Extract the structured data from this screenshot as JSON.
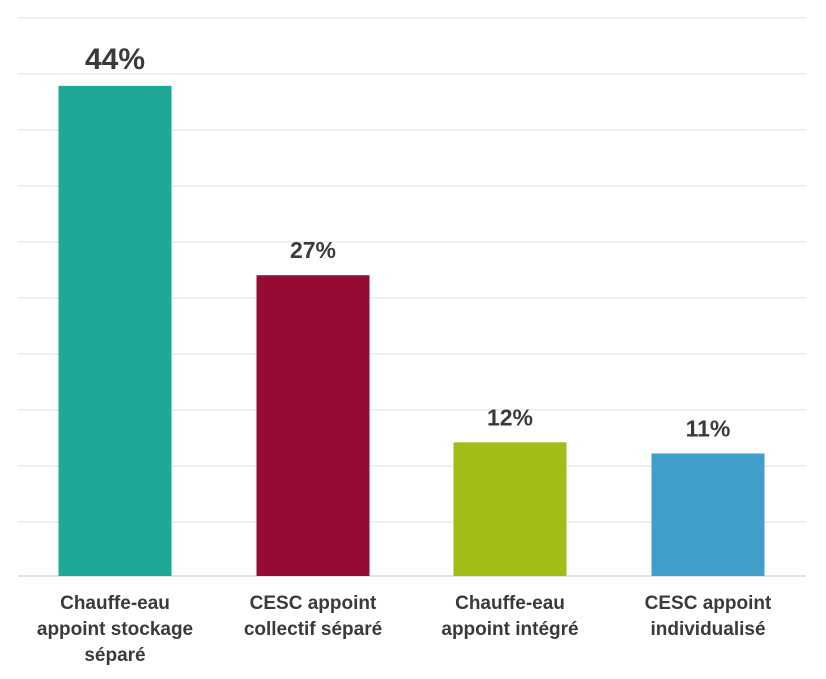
{
  "chart_data": {
    "type": "bar",
    "title": "",
    "xlabel": "",
    "ylabel": "",
    "ylim": [
      0,
      50
    ],
    "grid": true,
    "categories": [
      [
        "Chauffe-eau",
        "appoint stockage",
        "séparé"
      ],
      [
        "CESC appoint",
        "collectif séparé"
      ],
      [
        "Chauffe-eau",
        "appoint intégré"
      ],
      [
        "CESC appoint",
        "individualisé"
      ]
    ],
    "values": [
      44,
      27,
      12,
      11
    ],
    "value_labels": [
      "44%",
      "27%",
      "12%",
      "11%"
    ],
    "colors": [
      "#1fa896",
      "#940b33",
      "#a1be17",
      "#3f9fca"
    ]
  }
}
